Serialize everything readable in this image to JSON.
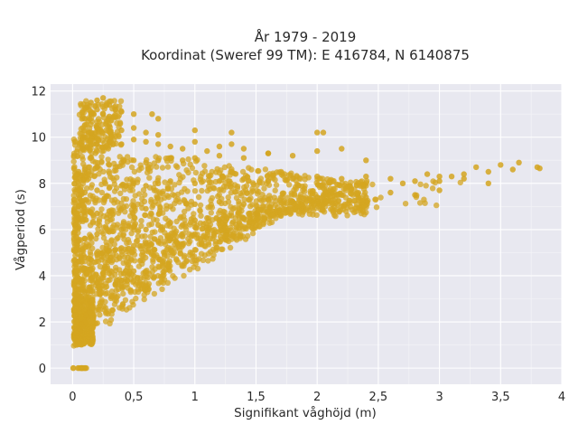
{
  "chart_data": {
    "type": "scatter",
    "title": "År 1979 - 2019",
    "subtitle": "Koordinat (Sweref 99 TM): E 416784, N 6140875",
    "xlabel": "Signifikant våghöjd (m)",
    "ylabel": "Vågperiod (s)",
    "xlim": [
      -0.18,
      4.0
    ],
    "ylim": [
      -0.7,
      12.3
    ],
    "x_ticks": [
      0,
      0.5,
      1,
      1.5,
      2,
      2.5,
      3,
      3.5,
      4
    ],
    "x_tick_labels": [
      "0",
      "0,5",
      "1",
      "1,5",
      "2",
      "2,5",
      "3",
      "3,5",
      "4"
    ],
    "y_ticks": [
      0,
      2,
      4,
      6,
      8,
      10,
      12
    ],
    "y_tick_labels": [
      "0",
      "2",
      "4",
      "6",
      "8",
      "10",
      "12"
    ],
    "grid": true,
    "legend": "none",
    "colors": {
      "marker": "#d4a520",
      "plot_background": "#e8e8f0",
      "grid": "#ffffff"
    },
    "series": [
      {
        "x": [
          0.02,
          0.04,
          0.06,
          0.08,
          0.1,
          0.12,
          0.14,
          0.03,
          0.05,
          0.07,
          0.09,
          0.11,
          0.02,
          0.03,
          0.05,
          0.07,
          0.1,
          0.15,
          0.2,
          0.25,
          0.3,
          0.35,
          0.4,
          0.45,
          0.5,
          0.03,
          0.05,
          0.1,
          0.15,
          0.2,
          0.25,
          0.3,
          0.4,
          0.5,
          0.6,
          0.7,
          0.8,
          0.9,
          1.0,
          0.05,
          0.1,
          0.15,
          0.2,
          0.3,
          0.4,
          0.5,
          0.6,
          0.7,
          0.8,
          0.9,
          1.0,
          1.1,
          1.2,
          1.3,
          1.4,
          1.5,
          0.05,
          0.1,
          0.2,
          0.3,
          0.4,
          0.5,
          0.6,
          0.8,
          1.0,
          1.2,
          1.4,
          1.6,
          1.8,
          2.0,
          2.2,
          2.4,
          2.6,
          2.8,
          3.0,
          0.05,
          0.1,
          0.2,
          0.3,
          0.4,
          0.5,
          0.6,
          0.7,
          0.8,
          1.0,
          1.2,
          1.4,
          1.6,
          1.8,
          2.0,
          2.2,
          2.4,
          2.6,
          2.8,
          3.0,
          3.2,
          3.4,
          3.6,
          3.8,
          0.05,
          0.1,
          0.2,
          0.3,
          0.4,
          0.5,
          0.6,
          0.7,
          0.8,
          0.9,
          1.0,
          1.2,
          1.4,
          1.6,
          1.8,
          2.0,
          2.2,
          2.4,
          0.08,
          0.12,
          0.2,
          0.3,
          0.4,
          0.5,
          0.6,
          0.7,
          0.8,
          0.9,
          1.0,
          1.1,
          1.2,
          1.3,
          1.4,
          1.6,
          0.1,
          0.15,
          0.2,
          0.3,
          0.4,
          0.5,
          0.6,
          0.7,
          1.0,
          1.3,
          2.0,
          2.05,
          0.1,
          0.15,
          0.2,
          0.25,
          0.3,
          0.4,
          0.5,
          0.65,
          0.7,
          0.12,
          0.15,
          0.2,
          0.25,
          0.3,
          0.35,
          3.3,
          3.5,
          3.65,
          3.82,
          3.1,
          3.2,
          3.4,
          2.9,
          3.0,
          2.7
        ],
        "y": [
          1.2,
          1.4,
          1.6,
          1.8,
          2.0,
          2.2,
          2.4,
          1.5,
          1.7,
          1.9,
          2.1,
          2.3,
          3.0,
          3.2,
          3.4,
          3.1,
          3.3,
          3.5,
          3.7,
          3.9,
          4.1,
          3.6,
          3.8,
          4.0,
          4.2,
          4.5,
          4.6,
          4.8,
          4.7,
          4.9,
          5.0,
          5.1,
          5.2,
          5.3,
          5.4,
          5.5,
          5.6,
          5.7,
          5.8,
          5.5,
          5.6,
          5.7,
          5.8,
          5.9,
          6.0,
          6.1,
          6.0,
          6.2,
          6.3,
          6.2,
          6.4,
          6.5,
          6.4,
          6.6,
          6.5,
          6.7,
          6.5,
          6.6,
          6.7,
          6.8,
          6.9,
          7.0,
          6.9,
          7.0,
          7.1,
          7.2,
          7.1,
          7.3,
          7.2,
          7.4,
          7.5,
          7.4,
          7.6,
          7.5,
          7.7,
          7.5,
          7.6,
          7.7,
          7.8,
          7.9,
          8.0,
          7.9,
          8.0,
          8.1,
          8.0,
          8.1,
          8.2,
          8.1,
          8.2,
          8.3,
          8.2,
          8.3,
          8.2,
          8.1,
          8.3,
          8.4,
          8.5,
          8.6,
          8.7,
          8.5,
          8.6,
          8.7,
          8.8,
          8.9,
          9.0,
          8.9,
          9.0,
          9.1,
          9.0,
          9.1,
          9.2,
          9.1,
          9.3,
          9.2,
          9.4,
          9.5,
          9.0,
          9.5,
          9.6,
          9.7,
          9.8,
          9.7,
          9.9,
          9.8,
          9.7,
          9.6,
          9.5,
          9.8,
          9.4,
          9.6,
          9.7,
          9.5,
          9.3,
          10.0,
          10.2,
          10.4,
          10.5,
          10.3,
          10.4,
          10.2,
          10.1,
          10.3,
          10.2,
          10.2,
          10.2,
          10.8,
          11.0,
          11.2,
          11.0,
          10.9,
          11.1,
          11.0,
          11.0,
          10.8,
          11.3,
          11.5,
          11.6,
          11.7,
          11.4,
          11.2,
          8.7,
          8.8,
          8.9,
          8.65,
          8.3,
          8.2,
          8.0,
          8.4,
          8.1,
          8.0
        ]
      }
    ]
  }
}
